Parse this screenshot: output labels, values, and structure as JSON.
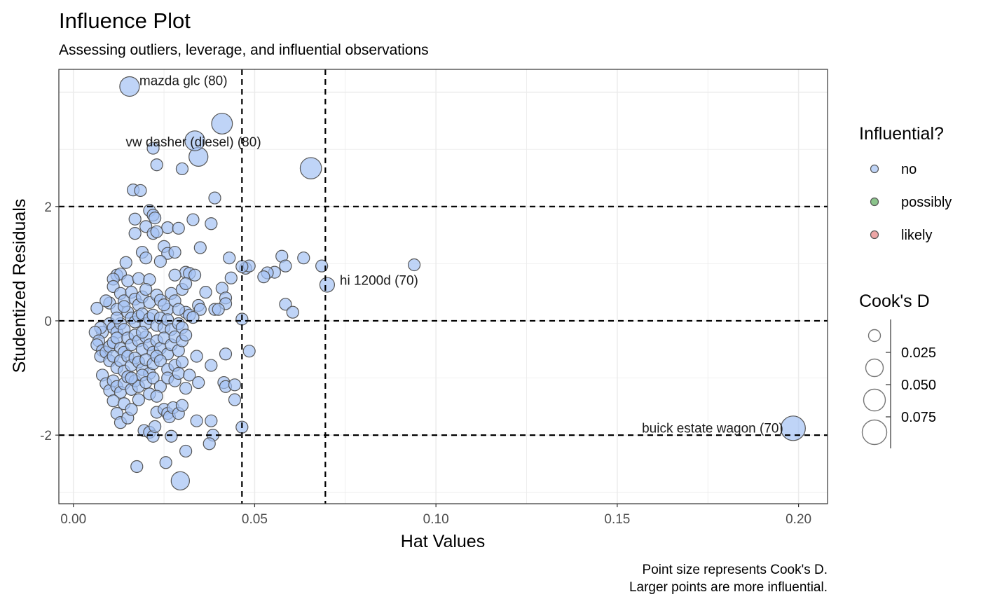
{
  "chart_data": {
    "type": "scatter",
    "title": "Influence Plot",
    "subtitle": "Assessing outliers, leverage, and influential observations",
    "xlabel": "Hat Values",
    "ylabel": "Studentized Residuals",
    "caption_lines": [
      "Point size represents Cook's D.",
      "Larger points are more influential."
    ],
    "xlim": [
      -0.004,
      0.208
    ],
    "ylim": [
      -3.2,
      4.4
    ],
    "x_ticks": [
      {
        "value": 0.0,
        "label": "0.00"
      },
      {
        "value": 0.05,
        "label": "0.05"
      },
      {
        "value": 0.1,
        "label": "0.10"
      },
      {
        "value": 0.15,
        "label": "0.15"
      },
      {
        "value": 0.2,
        "label": "0.20"
      }
    ],
    "y_ticks": [
      {
        "value": -2,
        "label": "-2"
      },
      {
        "value": 0,
        "label": "0"
      },
      {
        "value": 2,
        "label": "2"
      }
    ],
    "grid": true,
    "reference_lines": {
      "vertical": [
        0.0465,
        0.0695
      ],
      "horizontal": [
        -2,
        0,
        2
      ]
    },
    "colors": {
      "no": "#a4c2f4",
      "possibly": "#5aab5a",
      "likely": "#e58080",
      "point_stroke": "#555555",
      "grid": "#ebebeb",
      "ref_line": "#000000"
    },
    "legend_color": {
      "title": "Influential?",
      "position": "right",
      "items": [
        {
          "label": "no",
          "color": "#a4c2f4"
        },
        {
          "label": "possibly",
          "color": "#5aab5a"
        },
        {
          "label": "likely",
          "color": "#e58080"
        }
      ]
    },
    "legend_size": {
      "title": "Cook's D",
      "position": "right",
      "breaks": [
        {
          "value": 0.025,
          "label": "0.025"
        },
        {
          "value": 0.05,
          "label": "0.050"
        },
        {
          "value": 0.075,
          "label": "0.075"
        }
      ]
    },
    "labeled_points": [
      {
        "label": "mazda glc  (80)",
        "x": 0.0155,
        "y": 4.1,
        "cooksd": 0.04
      },
      {
        "label": "vw dasher (diesel) (80)",
        "x": 0.0335,
        "y": 3.15,
        "cooksd": 0.042
      },
      {
        "label": "hi 1200d  (70)",
        "x": 0.07,
        "y": 0.63,
        "cooksd": 0.01
      },
      {
        "label": "buick estate wagon (70)",
        "x": 0.1985,
        "y": -1.88,
        "cooksd": 0.09
      }
    ],
    "big_points": [
      {
        "x": 0.041,
        "y": 3.45,
        "cooksd": 0.05
      },
      {
        "x": 0.0655,
        "y": 2.67,
        "cooksd": 0.055
      },
      {
        "x": 0.0345,
        "y": 2.87,
        "cooksd": 0.035
      },
      {
        "x": 0.0295,
        "y": -2.8,
        "cooksd": 0.03
      }
    ],
    "points": [
      [
        0.022,
        3.02
      ],
      [
        0.023,
        2.73
      ],
      [
        0.03,
        2.66
      ],
      [
        0.0165,
        2.29
      ],
      [
        0.0185,
        2.28
      ],
      [
        0.039,
        2.15
      ],
      [
        0.021,
        1.93
      ],
      [
        0.022,
        1.85
      ],
      [
        0.0225,
        1.8
      ],
      [
        0.017,
        1.78
      ],
      [
        0.02,
        1.65
      ],
      [
        0.026,
        1.63
      ],
      [
        0.029,
        1.62
      ],
      [
        0.017,
        1.53
      ],
      [
        0.022,
        1.53
      ],
      [
        0.023,
        1.56
      ],
      [
        0.033,
        1.77
      ],
      [
        0.038,
        1.7
      ],
      [
        0.035,
        1.28
      ],
      [
        0.025,
        1.3
      ],
      [
        0.019,
        1.2
      ],
      [
        0.02,
        1.1
      ],
      [
        0.026,
        1.18
      ],
      [
        0.028,
        1.2
      ],
      [
        0.0145,
        1.02
      ],
      [
        0.024,
        1.04
      ],
      [
        0.031,
        0.85
      ],
      [
        0.032,
        0.83
      ],
      [
        0.043,
        1.1
      ],
      [
        0.0475,
        0.92
      ],
      [
        0.0485,
        0.96
      ],
      [
        0.0575,
        1.13
      ],
      [
        0.0555,
        0.85
      ],
      [
        0.0535,
        0.84
      ],
      [
        0.0525,
        0.77
      ],
      [
        0.0585,
        0.96
      ],
      [
        0.0635,
        1.1
      ],
      [
        0.0685,
        0.96
      ],
      [
        0.094,
        0.98
      ],
      [
        0.012,
        0.8
      ],
      [
        0.013,
        0.82
      ],
      [
        0.011,
        0.73
      ],
      [
        0.015,
        0.7
      ],
      [
        0.018,
        0.74
      ],
      [
        0.021,
        0.72
      ],
      [
        0.028,
        0.8
      ],
      [
        0.0335,
        0.8
      ],
      [
        0.0435,
        0.75
      ],
      [
        0.041,
        0.57
      ],
      [
        0.0365,
        0.5
      ],
      [
        0.042,
        0.4
      ],
      [
        0.042,
        0.3
      ],
      [
        0.0585,
        0.29
      ],
      [
        0.0605,
        0.15
      ],
      [
        0.039,
        0.2
      ],
      [
        0.04,
        0.2
      ],
      [
        0.0345,
        0.27
      ],
      [
        0.035,
        0.2
      ],
      [
        0.031,
        0.15
      ],
      [
        0.026,
        0.2
      ],
      [
        0.011,
        0.6
      ],
      [
        0.013,
        0.48
      ],
      [
        0.014,
        0.35
      ],
      [
        0.01,
        0.31
      ],
      [
        0.009,
        0.35
      ],
      [
        0.0065,
        0.22
      ],
      [
        0.012,
        0.2
      ],
      [
        0.016,
        0.5
      ],
      [
        0.017,
        0.38
      ],
      [
        0.018,
        0.28
      ],
      [
        0.019,
        0.42
      ],
      [
        0.02,
        0.55
      ],
      [
        0.021,
        0.32
      ],
      [
        0.023,
        0.45
      ],
      [
        0.024,
        0.36
      ],
      [
        0.025,
        0.28
      ],
      [
        0.027,
        0.48
      ],
      [
        0.028,
        0.35
      ],
      [
        0.029,
        0.2
      ],
      [
        0.03,
        0.55
      ],
      [
        0.031,
        0.65
      ],
      [
        0.015,
        0.15
      ],
      [
        0.016,
        0.05
      ],
      [
        0.017,
        -0.02
      ],
      [
        0.018,
        0.08
      ],
      [
        0.019,
        0.12
      ],
      [
        0.02,
        -0.05
      ],
      [
        0.021,
        0.04
      ],
      [
        0.022,
        0.1
      ],
      [
        0.023,
        -0.08
      ],
      [
        0.024,
        0.05
      ],
      [
        0.025,
        -0.12
      ],
      [
        0.026,
        0.02
      ],
      [
        0.027,
        -0.15
      ],
      [
        0.029,
        -0.05
      ],
      [
        0.03,
        -0.12
      ],
      [
        0.032,
        0.1
      ],
      [
        0.033,
        0.06
      ],
      [
        0.0465,
        0.03
      ],
      [
        0.0465,
        0.95
      ],
      [
        0.01,
        -0.05
      ],
      [
        0.011,
        -0.12
      ],
      [
        0.012,
        -0.2
      ],
      [
        0.013,
        -0.05
      ],
      [
        0.014,
        -0.15
      ],
      [
        0.008,
        -0.2
      ],
      [
        0.0075,
        -0.12
      ],
      [
        0.006,
        -0.2
      ],
      [
        0.007,
        -0.35
      ],
      [
        0.0065,
        -0.42
      ],
      [
        0.008,
        -0.52
      ],
      [
        0.0075,
        -0.62
      ],
      [
        0.009,
        -0.55
      ],
      [
        0.01,
        -0.45
      ],
      [
        0.011,
        -0.38
      ],
      [
        0.012,
        -0.3
      ],
      [
        0.013,
        -0.48
      ],
      [
        0.014,
        -0.55
      ],
      [
        0.015,
        -0.3
      ],
      [
        0.016,
        -0.42
      ],
      [
        0.017,
        -0.25
      ],
      [
        0.018,
        -0.35
      ],
      [
        0.019,
        -0.5
      ],
      [
        0.02,
        -0.28
      ],
      [
        0.021,
        -0.42
      ],
      [
        0.022,
        -0.55
      ],
      [
        0.023,
        -0.35
      ],
      [
        0.024,
        -0.48
      ],
      [
        0.025,
        -0.3
      ],
      [
        0.026,
        -0.58
      ],
      [
        0.027,
        -0.42
      ],
      [
        0.028,
        -0.28
      ],
      [
        0.029,
        -0.52
      ],
      [
        0.03,
        -0.35
      ],
      [
        0.031,
        -0.25
      ],
      [
        0.01,
        -0.7
      ],
      [
        0.011,
        -0.62
      ],
      [
        0.012,
        -0.82
      ],
      [
        0.013,
        -0.7
      ],
      [
        0.014,
        -0.88
      ],
      [
        0.015,
        -0.62
      ],
      [
        0.016,
        -0.78
      ],
      [
        0.017,
        -0.65
      ],
      [
        0.018,
        -0.72
      ],
      [
        0.019,
        -0.85
      ],
      [
        0.02,
        -0.68
      ],
      [
        0.021,
        -0.92
      ],
      [
        0.022,
        -0.75
      ],
      [
        0.023,
        -0.62
      ],
      [
        0.024,
        -0.7
      ],
      [
        0.026,
        -0.85
      ],
      [
        0.028,
        -0.78
      ],
      [
        0.03,
        -0.72
      ],
      [
        0.034,
        -0.62
      ],
      [
        0.038,
        -0.78
      ],
      [
        0.042,
        -0.58
      ],
      [
        0.0485,
        -0.53
      ],
      [
        0.008,
        -0.95
      ],
      [
        0.009,
        -1.1
      ],
      [
        0.01,
        -1.22
      ],
      [
        0.011,
        -1.05
      ],
      [
        0.012,
        -1.15
      ],
      [
        0.013,
        -1.25
      ],
      [
        0.014,
        -1.1
      ],
      [
        0.015,
        -0.98
      ],
      [
        0.016,
        -1.2
      ],
      [
        0.017,
        -1.05
      ],
      [
        0.018,
        -1.15
      ],
      [
        0.019,
        -0.95
      ],
      [
        0.02,
        -1.08
      ],
      [
        0.022,
        -1.0
      ],
      [
        0.024,
        -1.15
      ],
      [
        0.026,
        -1.0
      ],
      [
        0.028,
        -1.05
      ],
      [
        0.029,
        -0.92
      ],
      [
        0.031,
        -1.18
      ],
      [
        0.032,
        -0.95
      ],
      [
        0.0345,
        -1.08
      ],
      [
        0.0415,
        -1.08
      ],
      [
        0.042,
        -1.15
      ],
      [
        0.0445,
        -1.12
      ],
      [
        0.0445,
        -1.38
      ],
      [
        0.011,
        -1.4
      ],
      [
        0.012,
        -1.62
      ],
      [
        0.013,
        -1.78
      ],
      [
        0.014,
        -1.45
      ],
      [
        0.015,
        -1.7
      ],
      [
        0.016,
        -1.55
      ],
      [
        0.018,
        -1.38
      ],
      [
        0.0195,
        -1.92
      ],
      [
        0.021,
        -1.95
      ],
      [
        0.022,
        -2.02
      ],
      [
        0.0225,
        -1.85
      ],
      [
        0.023,
        -1.6
      ],
      [
        0.025,
        -1.55
      ],
      [
        0.026,
        -1.62
      ],
      [
        0.0265,
        -1.68
      ],
      [
        0.027,
        -2.02
      ],
      [
        0.0275,
        -1.52
      ],
      [
        0.029,
        -1.62
      ],
      [
        0.03,
        -1.48
      ],
      [
        0.034,
        -1.75
      ],
      [
        0.038,
        -1.75
      ],
      [
        0.0385,
        -2.0
      ],
      [
        0.0375,
        -2.15
      ],
      [
        0.031,
        -2.28
      ],
      [
        0.0255,
        -2.48
      ],
      [
        0.0175,
        -2.55
      ],
      [
        0.0465,
        -1.86
      ],
      [
        0.021,
        -1.28
      ],
      [
        0.023,
        -1.32
      ],
      [
        0.016,
        -1.0
      ],
      [
        0.019,
        -0.2
      ],
      [
        0.012,
        0.05
      ],
      [
        0.014,
        0.25
      ]
    ]
  }
}
